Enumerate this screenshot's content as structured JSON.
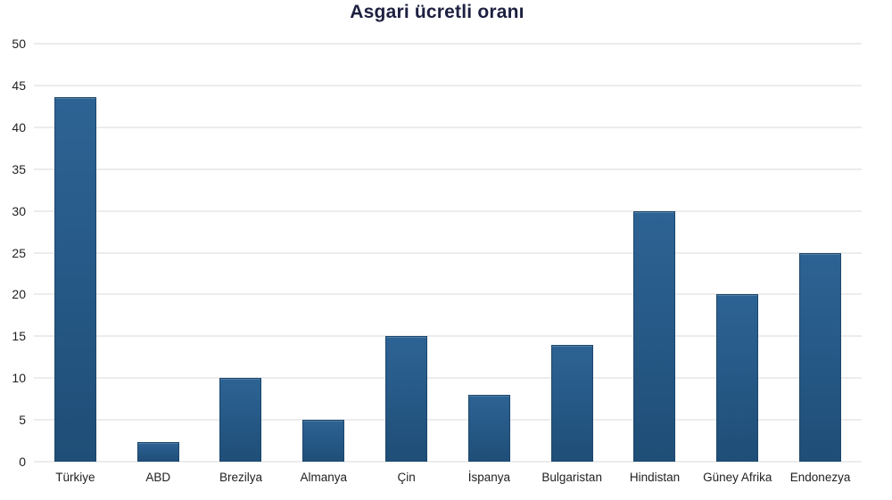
{
  "chart_data": {
    "type": "bar",
    "title": "Asgari ücretli oranı",
    "categories": [
      "Türkiye",
      "ABD",
      "Brezilya",
      "Almanya",
      "Çin",
      "İspanya",
      "Bulgaristan",
      "Hindistan",
      "Güney Afrika",
      "Endonezya"
    ],
    "values": [
      43.6,
      2.3,
      10,
      5,
      15,
      8,
      14,
      30,
      20,
      25
    ],
    "xlabel": "",
    "ylabel": "",
    "ylim": [
      0,
      50
    ],
    "yticks": [
      0,
      5,
      10,
      15,
      20,
      25,
      30,
      35,
      40,
      45,
      50
    ],
    "grid": "horizontal",
    "legend": "none",
    "colors": {
      "background": "#ffffff",
      "title_text": "#1d2040",
      "axis_text": "#1f1f1f",
      "gridline": "#d9d9d9",
      "bar_fill_top": "#2d6394",
      "bar_fill_bottom": "#1f4e77",
      "bar_border": "#1b466b"
    }
  }
}
